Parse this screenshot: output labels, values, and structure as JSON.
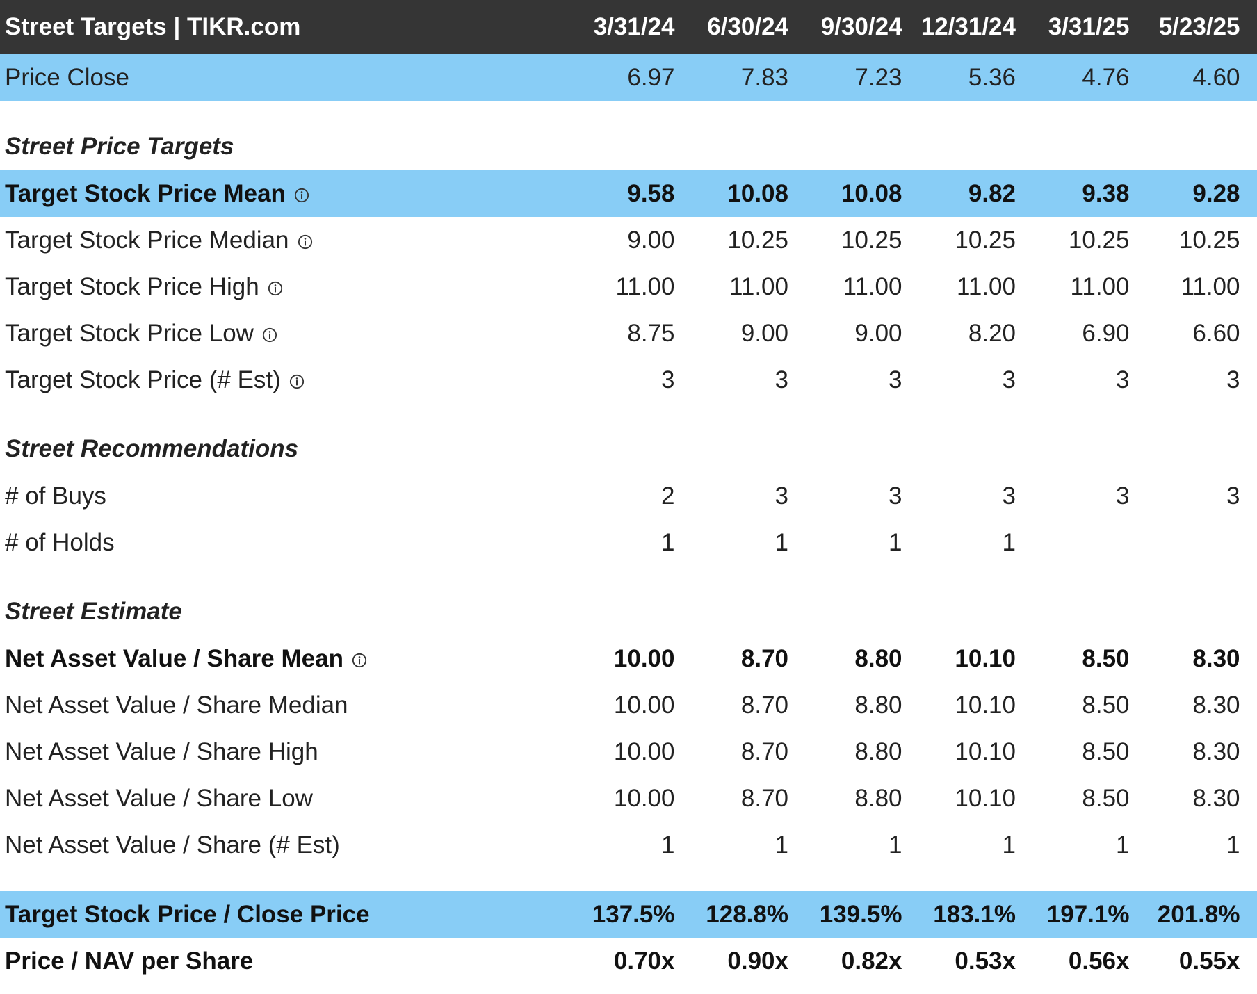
{
  "header": {
    "title": "Street Targets | TIKR.com",
    "columns": [
      "3/31/24",
      "6/30/24",
      "9/30/24",
      "12/31/24",
      "3/31/25",
      "5/23/25"
    ]
  },
  "price_close": {
    "label": "Price Close",
    "values": [
      "6.97",
      "7.83",
      "7.23",
      "5.36",
      "4.76",
      "4.60"
    ]
  },
  "sections": {
    "price_targets": "Street Price Targets",
    "recommendations": "Street Recommendations",
    "estimate": "Street Estimate"
  },
  "target_rows": [
    {
      "label": "Target Stock Price Mean",
      "values": [
        "9.58",
        "10.08",
        "10.08",
        "9.82",
        "9.38",
        "9.28"
      ]
    },
    {
      "label": "Target Stock Price Median",
      "values": [
        "9.00",
        "10.25",
        "10.25",
        "10.25",
        "10.25",
        "10.25"
      ]
    },
    {
      "label": "Target Stock Price High",
      "values": [
        "11.00",
        "11.00",
        "11.00",
        "11.00",
        "11.00",
        "11.00"
      ]
    },
    {
      "label": "Target Stock Price Low",
      "values": [
        "8.75",
        "9.00",
        "9.00",
        "8.20",
        "6.90",
        "6.60"
      ]
    },
    {
      "label": "Target Stock Price (# Est)",
      "values": [
        "3",
        "3",
        "3",
        "3",
        "3",
        "3"
      ]
    }
  ],
  "recommendation_rows": [
    {
      "label": "# of Buys",
      "values": [
        "2",
        "3",
        "3",
        "3",
        "3",
        "3"
      ]
    },
    {
      "label": "# of Holds",
      "values": [
        "1",
        "1",
        "1",
        "1",
        "",
        ""
      ]
    }
  ],
  "estimate_rows": [
    {
      "label": "Net Asset Value / Share Mean",
      "values": [
        "10.00",
        "8.70",
        "8.80",
        "10.10",
        "8.50",
        "8.30"
      ]
    },
    {
      "label": "Net Asset Value / Share Median",
      "values": [
        "10.00",
        "8.70",
        "8.80",
        "10.10",
        "8.50",
        "8.30"
      ]
    },
    {
      "label": "Net Asset Value / Share High",
      "values": [
        "10.00",
        "8.70",
        "8.80",
        "10.10",
        "8.50",
        "8.30"
      ]
    },
    {
      "label": "Net Asset Value / Share Low",
      "values": [
        "10.00",
        "8.70",
        "8.80",
        "10.10",
        "8.50",
        "8.30"
      ]
    },
    {
      "label": "Net Asset Value / Share (# Est)",
      "values": [
        "1",
        "1",
        "1",
        "1",
        "1",
        "1"
      ]
    }
  ],
  "ratio_rows": [
    {
      "label": "Target Stock Price / Close Price",
      "values": [
        "137.5%",
        "128.8%",
        "139.5%",
        "183.1%",
        "197.1%",
        "201.8%"
      ]
    },
    {
      "label": "Price / NAV per Share",
      "values": [
        "0.70x",
        "0.90x",
        "0.82x",
        "0.53x",
        "0.56x",
        "0.55x"
      ]
    }
  ],
  "colors": {
    "header_bg": "#353535",
    "highlight_bg": "#88cdf6",
    "text": "#222222"
  },
  "icons": {
    "info": "info-circle-icon"
  }
}
